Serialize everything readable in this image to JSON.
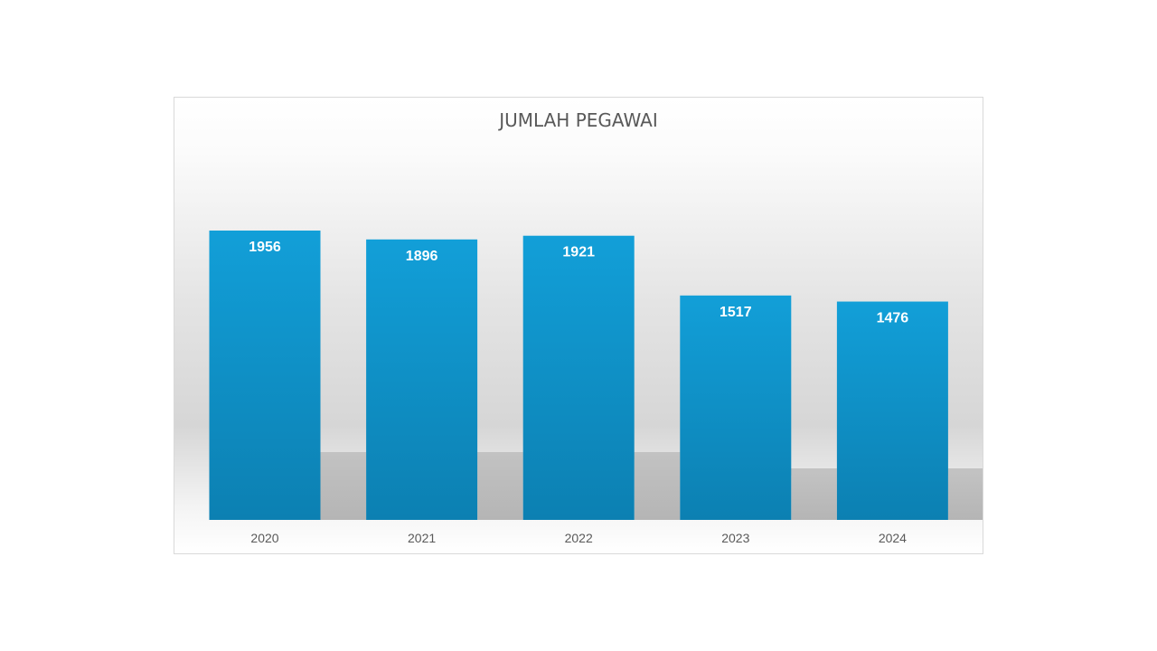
{
  "chart_data": {
    "type": "bar",
    "title": "JUMLAH PEGAWAI",
    "categories": [
      "2020",
      "2021",
      "2022",
      "2023",
      "2024"
    ],
    "values": [
      1956,
      1896,
      1921,
      1517,
      1476
    ],
    "ylim": [
      0,
      2500
    ],
    "grid": false,
    "legend": "none",
    "data_labels": "inside-end",
    "xlabel": "",
    "ylabel": "",
    "colors": {
      "bar_top": "#129fd8",
      "bar_bottom": "#0c80b2",
      "data_label": "#ffffff",
      "text": "#595959",
      "floor_shadow": "#b4b4b4"
    }
  }
}
